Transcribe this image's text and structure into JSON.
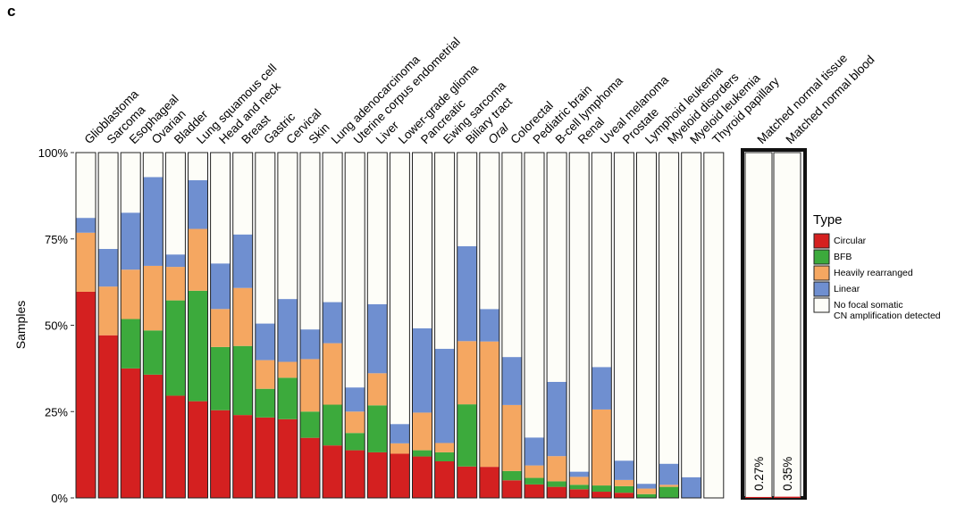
{
  "panel_label": "c",
  "chart_data": {
    "type": "bar",
    "subtype": "stacked-100-percent",
    "ylabel": "Samples",
    "ylim": [
      0,
      100
    ],
    "yticks": [
      "0%",
      "25%",
      "50%",
      "75%",
      "100%"
    ],
    "ytick_values": [
      0,
      25,
      50,
      75,
      100
    ],
    "legend_title": "Type",
    "legend_position": "right",
    "series": [
      {
        "name": "Circular",
        "color": "#d42020"
      },
      {
        "name": "BFB",
        "color": "#3caa3c"
      },
      {
        "name": "Heavily rearranged",
        "color": "#f5a761"
      },
      {
        "name": "Linear",
        "color": "#6f8fd0"
      },
      {
        "name": "No focal somatic CN amplification detected",
        "color": "#fdfdf8"
      }
    ],
    "legend_lines": {
      "Circular": [
        "Circular"
      ],
      "BFB": [
        "BFB"
      ],
      "Heavily rearranged": [
        "Heavily rearranged"
      ],
      "Linear": [
        "Linear"
      ],
      "No focal somatic CN amplification detected": [
        "No focal somatic",
        "CN amplification detected"
      ]
    },
    "categories": [
      "Glioblastoma",
      "Sarcoma",
      "Esophageal",
      "Ovarian",
      "Bladder",
      "Lung squamous cell",
      "Head and neck",
      "Breast",
      "Gastric",
      "Cervical",
      "Skin",
      "Lung adenocarcinoma",
      "Uterine corpus endometrial",
      "Liver",
      "Lower-grade glioma",
      "Pancreatic",
      "Ewing sarcoma",
      "Biliary tract",
      "Oral",
      "Colorectal",
      "Pediatric brain",
      "B-cell lymphoma",
      "Renal",
      "Uveal melanoma",
      "Prostate",
      "Lymphoid leukemia",
      "Myeloid disorders",
      "Myeloid leukemia",
      "Thyroid papillary"
    ],
    "italic_categories": [
      "Oral"
    ],
    "values": {
      "Circular": [
        59.7,
        47.1,
        37.5,
        35.7,
        29.6,
        28.0,
        25.4,
        24.0,
        23.3,
        22.8,
        17.4,
        15.2,
        13.8,
        13.2,
        12.8,
        12.0,
        10.6,
        9.1,
        9.0,
        5.1,
        3.9,
        3.2,
        2.5,
        1.8,
        1.5,
        0,
        0,
        0,
        0
      ],
      "BFB": [
        0,
        0,
        14.3,
        12.8,
        27.6,
        32.0,
        18.3,
        20.0,
        8.3,
        12.0,
        7.6,
        11.8,
        5.0,
        13.6,
        0,
        1.8,
        2.6,
        18.0,
        0,
        2.7,
        1.9,
        1.6,
        1.3,
        1.8,
        1.9,
        1.1,
        3.2,
        0,
        0
      ],
      "Heavily rearranged": [
        17.1,
        14.1,
        14.3,
        18.7,
        9.7,
        17.9,
        11.0,
        16.8,
        8.3,
        4.6,
        15.2,
        17.8,
        6.2,
        9.3,
        3.0,
        10.9,
        2.7,
        18.3,
        36.3,
        19.1,
        3.6,
        7.3,
        2.3,
        22.0,
        1.8,
        1.6,
        0.6,
        0,
        0
      ],
      "Linear": [
        4.3,
        10.9,
        16.5,
        25.7,
        3.6,
        14.1,
        13.2,
        15.5,
        10.6,
        18.2,
        8.6,
        11.9,
        7.0,
        20.0,
        5.6,
        24.4,
        27.3,
        27.5,
        9.4,
        13.9,
        8.1,
        21.5,
        1.5,
        12.3,
        5.6,
        1.4,
        6.1,
        6.0,
        0
      ],
      "No focal somatic CN amplification detected": [
        18.9,
        27.9,
        17.4,
        7.1,
        29.5,
        8.0,
        32.1,
        23.7,
        49.5,
        42.4,
        51.2,
        43.3,
        68.0,
        43.9,
        78.6,
        50.9,
        56.8,
        27.1,
        45.3,
        59.2,
        82.5,
        66.4,
        92.4,
        62.1,
        89.2,
        95.9,
        90.1,
        94.0,
        100
      ]
    },
    "matched": {
      "categories": [
        "Matched normal tissue",
        "Matched normal blood"
      ],
      "labels": [
        "0.27%",
        "0.35%"
      ],
      "values": [
        0.27,
        0.35
      ]
    }
  }
}
